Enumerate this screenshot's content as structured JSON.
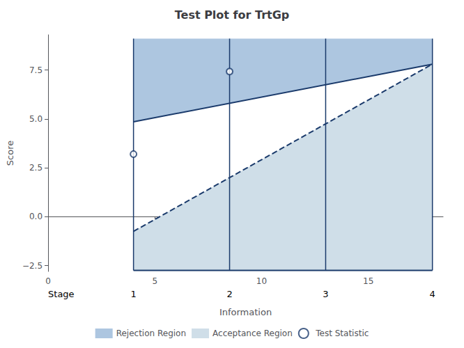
{
  "chart_data": {
    "type": "line",
    "title": "Test Plot for TrtGp",
    "xlabel": "Information",
    "ylabel": "Score",
    "xlim": [
      0,
      18.5
    ],
    "ylim": [
      -2.8,
      9.3
    ],
    "xticks": [
      0,
      5,
      10,
      15
    ],
    "yticks": [
      {
        "value": -2.5,
        "label": "−2.5"
      },
      {
        "value": 0.0,
        "label": "0.0"
      },
      2.5,
      {
        "value": 5.0,
        "label": "5.0"
      },
      7.5
    ],
    "grid": false,
    "legend": "bottom",
    "series": [
      {
        "name": "Rejection Region",
        "type": "area",
        "color": "#adc6e0",
        "x": [
          4.0,
          18.0,
          18.0,
          4.0
        ],
        "values": [
          4.85,
          7.8,
          9.1,
          9.1
        ]
      },
      {
        "name": "Acceptance Region",
        "type": "area",
        "color": "#cfdee8",
        "x": [
          4.0,
          18.0,
          18.0,
          4.0
        ],
        "values": [
          -0.75,
          7.8,
          -2.75,
          -2.75
        ]
      },
      {
        "type": "line",
        "line_style": "solid",
        "color": "#1a3a6b",
        "x": [
          4.0,
          18.0
        ],
        "values": [
          4.85,
          7.8
        ]
      },
      {
        "type": "line",
        "line_style": "dashed",
        "color": "#1a3a6b",
        "x": [
          4.0,
          18.0
        ],
        "values": [
          -0.75,
          7.8
        ]
      },
      {
        "type": "line",
        "line_style": "solid",
        "color": "#1a3a6b",
        "x": [
          4.0,
          18.0
        ],
        "values": [
          -2.75,
          -2.75
        ]
      },
      {
        "name": "Test Statistic",
        "type": "scatter",
        "marker": "open_circle",
        "color": "#1a3a6b",
        "x": [
          4.0,
          8.5
        ],
        "values": [
          3.2,
          7.42
        ]
      }
    ],
    "stages": {
      "label": "Stage",
      "x": [
        4.0,
        8.5,
        13.0,
        18.0
      ],
      "labels": [
        "1",
        "2",
        "3",
        "4"
      ],
      "ymin": -2.75,
      "ymax": 9.1,
      "color": "#1a3a6b"
    }
  }
}
